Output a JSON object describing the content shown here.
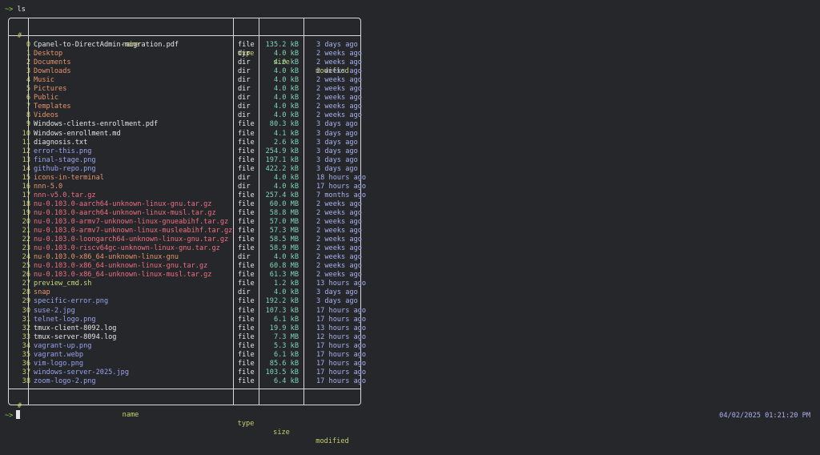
{
  "prompt": {
    "arrow": "~>",
    "command": "ls"
  },
  "columns": {
    "index": "#",
    "name": "name",
    "type": "type",
    "size": "size",
    "modified": "modified"
  },
  "rows": [
    {
      "i": "0",
      "name": "Cpanel-to-DirectAdmin-migration.pdf",
      "type": "file",
      "size": "135.2 kB",
      "mod": "3 days ago",
      "kind": "file"
    },
    {
      "i": "1",
      "name": "Desktop",
      "type": "dir",
      "size": "4.0 kB",
      "mod": "2 weeks ago",
      "kind": "dir"
    },
    {
      "i": "2",
      "name": "Documents",
      "type": "dir",
      "size": "4.0 kB",
      "mod": "2 weeks ago",
      "kind": "dir"
    },
    {
      "i": "3",
      "name": "Downloads",
      "type": "dir",
      "size": "4.0 kB",
      "mod": "2 weeks ago",
      "kind": "dir"
    },
    {
      "i": "4",
      "name": "Music",
      "type": "dir",
      "size": "4.0 kB",
      "mod": "2 weeks ago",
      "kind": "dir"
    },
    {
      "i": "5",
      "name": "Pictures",
      "type": "dir",
      "size": "4.0 kB",
      "mod": "2 weeks ago",
      "kind": "dir"
    },
    {
      "i": "6",
      "name": "Public",
      "type": "dir",
      "size": "4.0 kB",
      "mod": "2 weeks ago",
      "kind": "dir"
    },
    {
      "i": "7",
      "name": "Templates",
      "type": "dir",
      "size": "4.0 kB",
      "mod": "2 weeks ago",
      "kind": "dir"
    },
    {
      "i": "8",
      "name": "Videos",
      "type": "dir",
      "size": "4.0 kB",
      "mod": "2 weeks ago",
      "kind": "dir"
    },
    {
      "i": "9",
      "name": "Windows-clients-enrollment.pdf",
      "type": "file",
      "size": "80.3 kB",
      "mod": "3 days ago",
      "kind": "file"
    },
    {
      "i": "10",
      "name": "Windows-enrollment.md",
      "type": "file",
      "size": "4.1 kB",
      "mod": "3 days ago",
      "kind": "file"
    },
    {
      "i": "11",
      "name": "diagnosis.txt",
      "type": "file",
      "size": "2.6 kB",
      "mod": "3 days ago",
      "kind": "file"
    },
    {
      "i": "12",
      "name": "error-this.png",
      "type": "file",
      "size": "254.9 kB",
      "mod": "3 days ago",
      "kind": "img"
    },
    {
      "i": "13",
      "name": "final-stage.png",
      "type": "file",
      "size": "197.1 kB",
      "mod": "3 days ago",
      "kind": "img"
    },
    {
      "i": "14",
      "name": "github-repo.png",
      "type": "file",
      "size": "422.2 kB",
      "mod": "3 days ago",
      "kind": "img"
    },
    {
      "i": "15",
      "name": "icons-in-terminal",
      "type": "dir",
      "size": "4.0 kB",
      "mod": "18 hours ago",
      "kind": "dir"
    },
    {
      "i": "16",
      "name": "nnn-5.0",
      "type": "dir",
      "size": "4.0 kB",
      "mod": "17 hours ago",
      "kind": "dir"
    },
    {
      "i": "17",
      "name": "nnn-v5.0.tar.gz",
      "type": "file",
      "size": "257.4 kB",
      "mod": "7 months ago",
      "kind": "arch"
    },
    {
      "i": "18",
      "name": "nu-0.103.0-aarch64-unknown-linux-gnu.tar.gz",
      "type": "file",
      "size": "60.0 MB",
      "mod": "2 weeks ago",
      "kind": "arch"
    },
    {
      "i": "19",
      "name": "nu-0.103.0-aarch64-unknown-linux-musl.tar.gz",
      "type": "file",
      "size": "58.8 MB",
      "mod": "2 weeks ago",
      "kind": "arch"
    },
    {
      "i": "20",
      "name": "nu-0.103.0-armv7-unknown-linux-gnueabihf.tar.gz",
      "type": "file",
      "size": "57.0 MB",
      "mod": "2 weeks ago",
      "kind": "arch"
    },
    {
      "i": "21",
      "name": "nu-0.103.0-armv7-unknown-linux-musleabihf.tar.gz",
      "type": "file",
      "size": "57.3 MB",
      "mod": "2 weeks ago",
      "kind": "arch"
    },
    {
      "i": "22",
      "name": "nu-0.103.0-loongarch64-unknown-linux-gnu.tar.gz",
      "type": "file",
      "size": "58.5 MB",
      "mod": "2 weeks ago",
      "kind": "arch"
    },
    {
      "i": "23",
      "name": "nu-0.103.0-riscv64gc-unknown-linux-gnu.tar.gz",
      "type": "file",
      "size": "58.9 MB",
      "mod": "2 weeks ago",
      "kind": "arch"
    },
    {
      "i": "24",
      "name": "nu-0.103.0-x86_64-unknown-linux-gnu",
      "type": "dir",
      "size": "4.0 kB",
      "mod": "2 weeks ago",
      "kind": "dir"
    },
    {
      "i": "25",
      "name": "nu-0.103.0-x86_64-unknown-linux-gnu.tar.gz",
      "type": "file",
      "size": "60.8 MB",
      "mod": "2 weeks ago",
      "kind": "arch"
    },
    {
      "i": "26",
      "name": "nu-0.103.0-x86_64-unknown-linux-musl.tar.gz",
      "type": "file",
      "size": "61.3 MB",
      "mod": "2 weeks ago",
      "kind": "arch"
    },
    {
      "i": "27",
      "name": "preview_cmd.sh",
      "type": "file",
      "size": "1.2 kB",
      "mod": "13 hours ago",
      "kind": "exec"
    },
    {
      "i": "28",
      "name": "snap",
      "type": "dir",
      "size": "4.0 kB",
      "mod": "3 days ago",
      "kind": "dir"
    },
    {
      "i": "29",
      "name": "specific-error.png",
      "type": "file",
      "size": "192.2 kB",
      "mod": "3 days ago",
      "kind": "img"
    },
    {
      "i": "30",
      "name": "suse-2.jpg",
      "type": "file",
      "size": "107.3 kB",
      "mod": "17 hours ago",
      "kind": "img"
    },
    {
      "i": "31",
      "name": "telnet-logo.png",
      "type": "file",
      "size": "6.1 kB",
      "mod": "17 hours ago",
      "kind": "img"
    },
    {
      "i": "32",
      "name": "tmux-client-8092.log",
      "type": "file",
      "size": "19.9 kB",
      "mod": "13 hours ago",
      "kind": "file"
    },
    {
      "i": "33",
      "name": "tmux-server-8094.log",
      "type": "file",
      "size": "7.3 MB",
      "mod": "12 hours ago",
      "kind": "file"
    },
    {
      "i": "34",
      "name": "vagrant-up.png",
      "type": "file",
      "size": "5.3 kB",
      "mod": "17 hours ago",
      "kind": "img"
    },
    {
      "i": "35",
      "name": "vagrant.webp",
      "type": "file",
      "size": "6.1 kB",
      "mod": "17 hours ago",
      "kind": "img"
    },
    {
      "i": "36",
      "name": "vim-logo.png",
      "type": "file",
      "size": "85.6 kB",
      "mod": "17 hours ago",
      "kind": "img"
    },
    {
      "i": "37",
      "name": "windows-server-2025.jpg",
      "type": "file",
      "size": "103.5 kB",
      "mod": "17 hours ago",
      "kind": "img"
    },
    {
      "i": "38",
      "name": "zoom-logo-2.png",
      "type": "file",
      "size": "6.4 kB",
      "mod": "17 hours ago",
      "kind": "img"
    }
  ],
  "bottom_prompt": {
    "arrow": "~>"
  },
  "clock": "04/02/2025 01:21:20 PM",
  "colors": {
    "background": "#26272b",
    "accent_header": "#c8cf6a",
    "dir": "#e8956a",
    "image": "#9aa3ef",
    "archive": "#f06e82",
    "executable": "#c8d97a",
    "size": "#7ed6b3",
    "modified": "#a9b1f0"
  }
}
